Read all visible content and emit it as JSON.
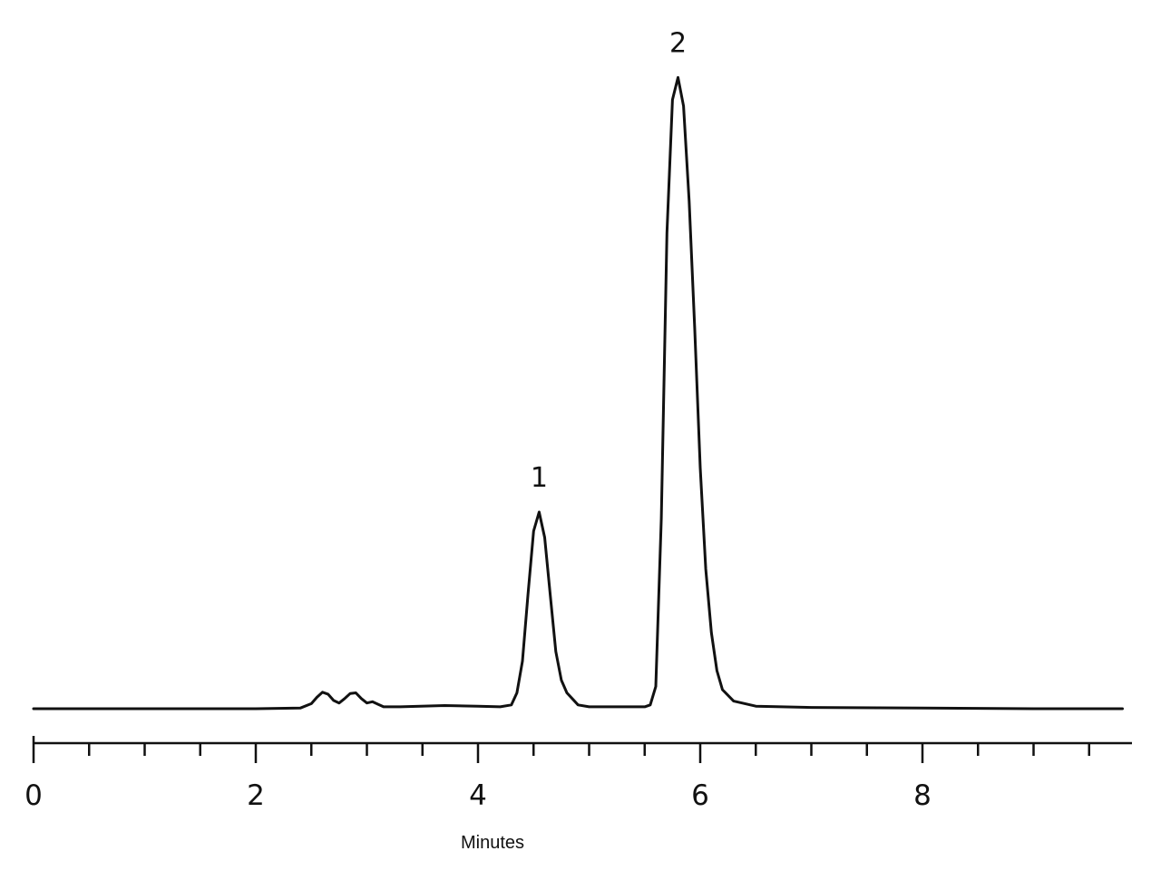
{
  "chart_data": {
    "type": "line",
    "title": "",
    "xlabel": "Minutes",
    "ylabel": "",
    "xlim": [
      0,
      9.8
    ],
    "ylim": [
      0,
      100
    ],
    "grid": false,
    "legend": "none",
    "x_ticks_major": [
      0,
      2,
      4,
      6,
      8
    ],
    "x_tick_labels": [
      "0",
      "2",
      "4",
      "6",
      "8"
    ],
    "x_ticks_minor": [
      0.5,
      1,
      1.5,
      2.5,
      3,
      3.5,
      4.5,
      5,
      5.5,
      6.5,
      7,
      7.5,
      8.5,
      9,
      9.5
    ],
    "series": [
      {
        "x": [
          0,
          1.0,
          2.0,
          2.4,
          2.5,
          2.55,
          2.6,
          2.65,
          2.7,
          2.75,
          2.8,
          2.85,
          2.9,
          2.95,
          3.0,
          3.05,
          3.1,
          3.15,
          3.3,
          3.7,
          4.0,
          4.2,
          4.3,
          4.35,
          4.4,
          4.45,
          4.5,
          4.55,
          4.6,
          4.65,
          4.7,
          4.75,
          4.8,
          4.9,
          5.0,
          5.3,
          5.5,
          5.55,
          5.6,
          5.65,
          5.7,
          5.75,
          5.8,
          5.85,
          5.9,
          5.95,
          6.0,
          6.05,
          6.1,
          6.15,
          6.2,
          6.3,
          6.5,
          7.0,
          8.0,
          9.0,
          9.8
        ],
        "y": [
          0,
          0,
          0,
          0.1,
          0.8,
          1.8,
          2.6,
          2.3,
          1.3,
          0.9,
          1.6,
          2.4,
          2.5,
          1.6,
          0.9,
          1.1,
          0.7,
          0.3,
          0.3,
          0.5,
          0.4,
          0.3,
          0.6,
          2.5,
          7.5,
          18,
          28,
          31,
          27,
          18,
          9,
          4.5,
          2.5,
          0.6,
          0.3,
          0.3,
          0.3,
          0.6,
          3.5,
          30,
          75,
          96,
          99.5,
          95,
          80,
          60,
          38,
          22,
          12,
          6,
          3,
          1.2,
          0.4,
          0.2,
          0.1,
          0,
          0
        ]
      }
    ],
    "annotations": [
      {
        "text": "1",
        "x": 4.55,
        "y": 31
      },
      {
        "text": "2",
        "x": 5.8,
        "y": 99.5
      }
    ]
  }
}
